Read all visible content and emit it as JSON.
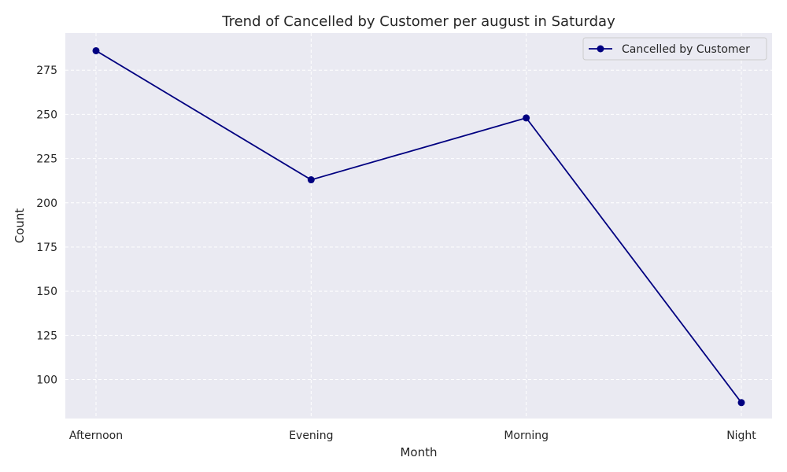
{
  "chart_data": {
    "type": "line",
    "title": "Trend of Cancelled by Customer per august in Saturday",
    "xlabel": "Month",
    "ylabel": "Count",
    "categories": [
      "Afternoon",
      "Evening",
      "Morning",
      "Night"
    ],
    "series": [
      {
        "name": "Cancelled by Customer",
        "values": [
          286,
          213,
          248,
          87
        ],
        "color": "#000080"
      }
    ],
    "ylim": [
      78,
      296
    ],
    "yticks": [
      100,
      125,
      150,
      175,
      200,
      225,
      250,
      275
    ],
    "grid": true,
    "grid_style": "dashed",
    "legend_position": "top-right",
    "background_color": "#eaeaf2"
  }
}
